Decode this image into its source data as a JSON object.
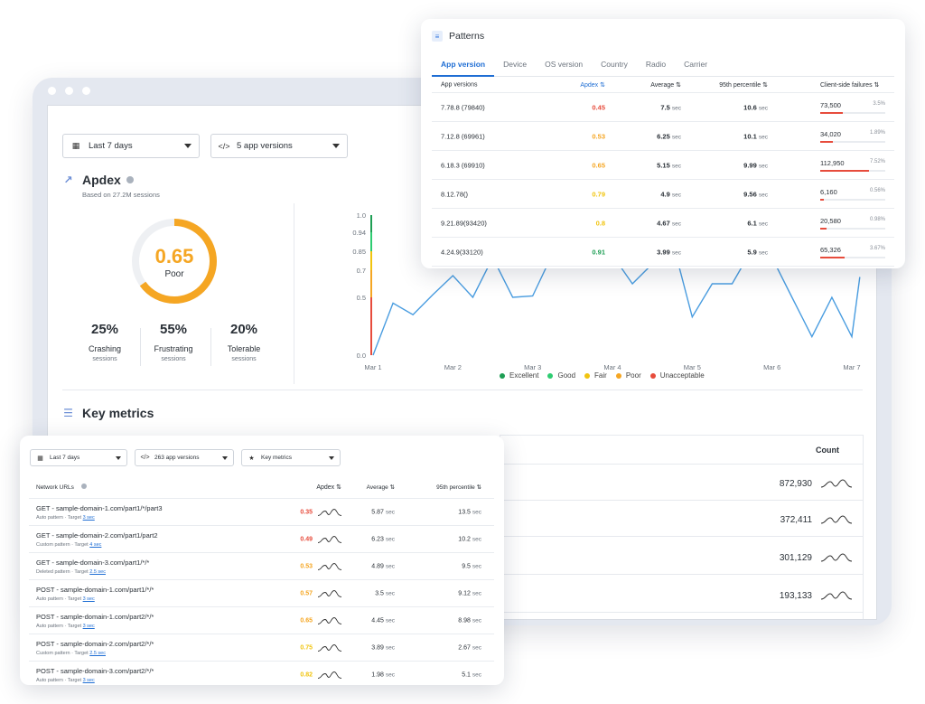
{
  "main": {
    "filters": {
      "date": "Last 7 days",
      "versions": "5 app versions"
    },
    "apdex": {
      "title": "Apdex",
      "subtitle": "Based on 27.2M sessions",
      "score": "0.65",
      "score_value": 0.65,
      "rating": "Poor",
      "stats": [
        {
          "value": "25%",
          "label": "Crashing",
          "sub": "sessions"
        },
        {
          "value": "55%",
          "label": "Frustrating",
          "sub": "sessions"
        },
        {
          "value": "20%",
          "label": "Tolerable",
          "sub": "sessions"
        }
      ]
    },
    "key_metrics_title": "Key metrics",
    "count_header": "Count",
    "counts": [
      "872,930",
      "372,411",
      "301,129",
      "193,133"
    ],
    "colors": {
      "excellent": "#1e9e54",
      "good": "#2ecc71",
      "fair": "#f1c40f",
      "poor": "#f5a623",
      "unacceptable": "#e74c3c",
      "line": "#4a9de0",
      "accent": "#1f6ed4"
    }
  },
  "chart_data": {
    "type": "line",
    "categories": [
      "Mar 1",
      "Mar 2",
      "Mar 3",
      "Mar 4",
      "Mar 5",
      "Mar 6",
      "Mar 7"
    ],
    "y_ticks": [
      "0.0",
      "0.5",
      "0.7",
      "0.85",
      "0.94",
      "1.0"
    ],
    "y_tick_values": [
      0.0,
      0.5,
      0.7,
      0.85,
      0.94,
      1.0
    ],
    "ylim": [
      0,
      1
    ],
    "x": [
      0,
      0.25,
      0.5,
      0.75,
      1.0,
      1.25,
      1.5,
      1.75,
      2.0,
      2.25,
      2.5,
      2.75,
      3.0,
      3.25,
      3.5,
      3.75,
      4.0,
      4.25,
      4.5,
      4.75,
      5.0,
      5.25,
      5.5,
      5.75,
      6.0
    ],
    "values": [
      0.0,
      0.45,
      0.35,
      0.52,
      0.66,
      0.5,
      0.8,
      0.5,
      0.51,
      0.83,
      0.87,
      0.85,
      0.82,
      0.6,
      0.75,
      0.9,
      0.33,
      0.6,
      0.6,
      0.86,
      0.8,
      0.5,
      0.16,
      0.5,
      0.16
    ],
    "values_tail": [
      0.65
    ],
    "legend": [
      "Excellent",
      "Good",
      "Fair",
      "Poor",
      "Unacceptable"
    ]
  },
  "patterns": {
    "title": "Patterns",
    "tabs": [
      "App version",
      "Device",
      "OS version",
      "Country",
      "Radio",
      "Carrier"
    ],
    "headers": {
      "version": "App versions",
      "apdex": "Apdex",
      "avg": "Average",
      "p95": "95th percentile",
      "fail": "Client-side failures"
    },
    "rows": [
      {
        "version": "7.78.8 (79840)",
        "apdex": "0.45",
        "apdex_color": "#e74c3c",
        "avg": "7.5",
        "p95": "10.6",
        "fail": "73,500",
        "fail_pct": "3.5%",
        "fail_frac": 0.35
      },
      {
        "version": "7.12.8 (69961)",
        "apdex": "0.53",
        "apdex_color": "#f5a623",
        "avg": "6.25",
        "p95": "10.1",
        "fail": "34,020",
        "fail_pct": "1.89%",
        "fail_frac": 0.19
      },
      {
        "version": "6.18.3 (69910)",
        "apdex": "0.65",
        "apdex_color": "#f5a623",
        "avg": "5.15",
        "p95": "9.99",
        "fail": "112,950",
        "fail_pct": "7.52%",
        "fail_frac": 0.75
      },
      {
        "version": "8.12.78()",
        "apdex": "0.79",
        "apdex_color": "#f1c40f",
        "avg": "4.9",
        "p95": "9.56",
        "fail": "6,160",
        "fail_pct": "0.56%",
        "fail_frac": 0.06
      },
      {
        "version": "9.21.89(93420)",
        "apdex": "0.8",
        "apdex_color": "#f1c40f",
        "avg": "4.67",
        "p95": "6.1",
        "fail": "20,580",
        "fail_pct": "0.98%",
        "fail_frac": 0.1
      },
      {
        "version": "4.24.9(33120)",
        "apdex": "0.91",
        "apdex_color": "#1e9e54",
        "avg": "3.99",
        "p95": "5.9",
        "fail": "65,326",
        "fail_pct": "3.67%",
        "fail_frac": 0.37
      }
    ],
    "unit": "sec"
  },
  "network": {
    "filters": {
      "date": "Last 7 days",
      "versions": "263 app versions",
      "metrics": "Key metrics"
    },
    "headers": {
      "url": "Network URLs",
      "apdex": "Apdex",
      "avg": "Average",
      "p95": "95th percentile"
    },
    "target_label": "Target",
    "unit": "sec",
    "rows": [
      {
        "url": "GET - sample-domain-1.com/part1/*/part3",
        "pattern": "Auto pattern",
        "target": "3 sec",
        "apdex": "0.35",
        "apdex_color": "#e74c3c",
        "avg": "5.87",
        "p95": "13.5"
      },
      {
        "url": "GET - sample-domain-2.com/part1/part2",
        "pattern": "Custom pattern",
        "target": "4 sec",
        "apdex": "0.49",
        "apdex_color": "#e74c3c",
        "avg": "6.23",
        "p95": "10.2"
      },
      {
        "url": "GET - sample-domain-3.com/part1/*/*",
        "pattern": "Deleted pattern",
        "target": "2.5 sec",
        "apdex": "0.53",
        "apdex_color": "#f5a623",
        "avg": "4.89",
        "p95": "9.5"
      },
      {
        "url": "POST - sample-domain-1.com/part1/*/*",
        "pattern": "Auto pattern",
        "target": "3 sec",
        "apdex": "0.57",
        "apdex_color": "#f5a623",
        "avg": "3.5",
        "p95": "9.12"
      },
      {
        "url": "POST - sample-domain-1.com/part2/*/*",
        "pattern": "Auto pattern",
        "target": "3 sec",
        "apdex": "0.65",
        "apdex_color": "#f5a623",
        "avg": "4.45",
        "p95": "8.98"
      },
      {
        "url": "POST - sample-domain-2.com/part2/*/*",
        "pattern": "Custom pattern",
        "target": "2.5 sec",
        "apdex": "0.75",
        "apdex_color": "#f1c40f",
        "avg": "3.89",
        "p95": "2.67"
      },
      {
        "url": "POST - sample-domain-3.com/part2/*/*",
        "pattern": "Auto pattern",
        "target": "3 sec",
        "apdex": "0.82",
        "apdex_color": "#f1c40f",
        "avg": "1.98",
        "p95": "5.1"
      }
    ]
  }
}
